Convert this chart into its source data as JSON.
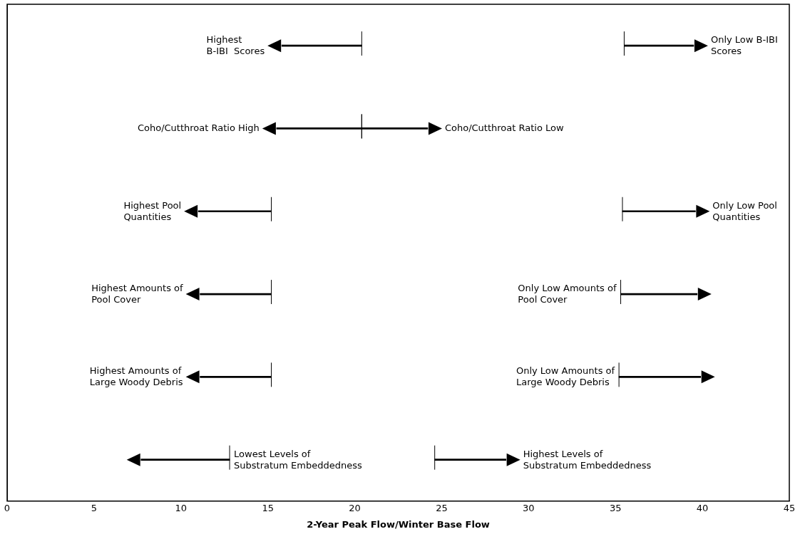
{
  "chart_data": {
    "type": "bar",
    "orientation": "horizontal",
    "xlabel": "2-Year Peak Flow/Winter Base Flow",
    "categories": [
      null,
      null,
      null,
      null,
      null,
      null
    ],
    "series": [
      {
        "color": "#000000",
        "base": [
          20.4,
          20.4,
          15.2,
          15.2,
          15.2,
          12.8
        ],
        "values": [
          -4.6,
          -4.9,
          -4.2,
          -4.1,
          -4.1,
          -5.1
        ],
        "value_labels": [
          "Highest\nB-IBI  Scores",
          "Coho/Cutthroat Ratio High",
          "Highest Pool\nQuantities",
          "Highest Amounts of\nPool Cover",
          "Highest Amounts of\nLarge Woody Debris",
          "Lowest Levels of\nSubstratum Embeddedness"
        ]
      },
      {
        "color": "#000000",
        "base": [
          35.5,
          20.4,
          35.4,
          35.3,
          35.2,
          24.6
        ],
        "values": [
          4.0,
          3.8,
          4.2,
          4.4,
          4.7,
          4.1
        ],
        "value_labels": [
          "Only Low B-IBI\nScores",
          "Coho/Cutthroat Ratio Low",
          "Only Low Pool\nQuantities",
          "Only Low Amounts of\nPool Cover",
          "Only Low Amounts of\nLarge Woody Debris",
          "Highest Levels of\nSubstratum Embeddedness"
        ]
      }
    ],
    "xlim": [
      0,
      45
    ],
    "xticks": [
      0,
      5,
      10,
      15,
      20,
      25,
      30,
      35,
      40,
      45
    ],
    "tick_labels": "x"
  }
}
